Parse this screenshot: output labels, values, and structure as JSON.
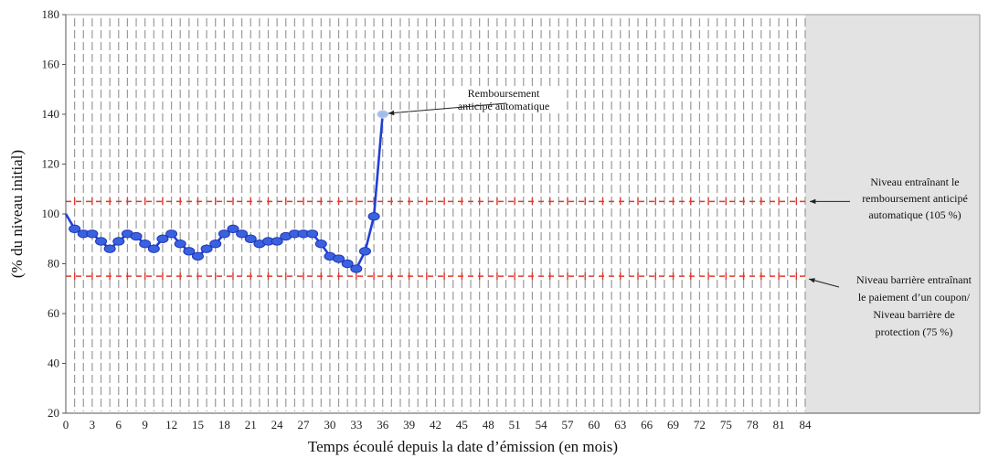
{
  "chart_data": {
    "type": "line",
    "title": "",
    "xlabel": "Temps écoulé depuis la date d’émission (en mois)",
    "ylabel": "(% du niveau initial)",
    "xlim": [
      0,
      84
    ],
    "ylim": [
      20,
      180
    ],
    "x_ticks": [
      0,
      3,
      6,
      9,
      12,
      15,
      18,
      21,
      24,
      27,
      30,
      33,
      36,
      39,
      42,
      45,
      48,
      51,
      54,
      57,
      60,
      63,
      66,
      69,
      72,
      75,
      78,
      81,
      84
    ],
    "y_ticks": [
      20,
      40,
      60,
      80,
      100,
      120,
      140,
      160,
      180
    ],
    "grid": "vertical-dashed",
    "shaded_region": {
      "x_from": 84
    },
    "series": [
      {
        "x": [
          0,
          1,
          2,
          3,
          4,
          5,
          6,
          7,
          8,
          9,
          10,
          11,
          12,
          13,
          14,
          15,
          16,
          17,
          18,
          19,
          20,
          21,
          22,
          23,
          24,
          25,
          26,
          27,
          28,
          29,
          30,
          31,
          32,
          33,
          34,
          35,
          36
        ],
        "values": [
          100,
          94,
          92,
          92,
          89,
          86,
          89,
          92,
          91,
          88,
          86,
          90,
          92,
          88,
          85,
          83,
          86,
          88,
          92,
          94,
          92,
          90,
          88,
          89,
          89,
          91,
          92,
          92,
          92,
          88,
          83,
          82,
          80,
          78,
          85,
          99,
          140
        ],
        "color": "#1f3fd8",
        "marker_color": "#3a62e0",
        "final_marker_color": "#9fbde8"
      }
    ],
    "reference_lines": [
      {
        "y": 105,
        "color": "#e03a2f"
      },
      {
        "y": 75,
        "color": "#e03a2f"
      }
    ],
    "annotations": [
      {
        "lines": [
          "Remboursement",
          "anticipé automatique"
        ],
        "point": [
          36,
          140
        ]
      },
      {
        "lines": [
          "Niveau entraînant  le",
          "remboursement anticipé",
          "automatique (105 %)"
        ],
        "points_to_y": 105
      },
      {
        "lines": [
          "Niveau barrière entraînant",
          "le paiement d’un coupon/",
          "Niveau barrière de",
          "protection (75 %)"
        ],
        "points_to_y": 75
      }
    ]
  }
}
